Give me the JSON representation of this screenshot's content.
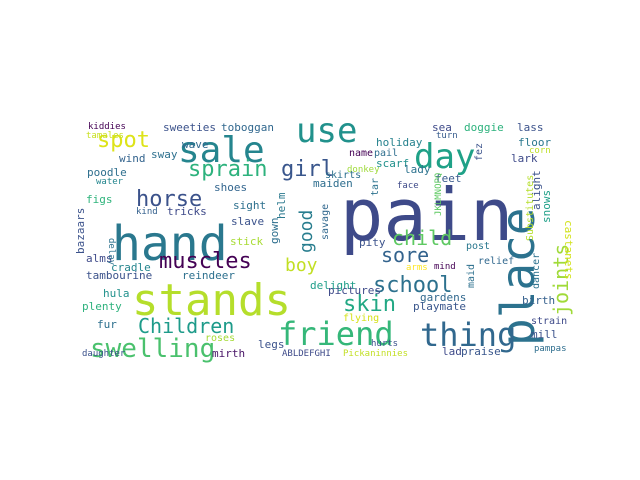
{
  "words": [
    {
      "text": "pain",
      "color": "#3e4a89"
    },
    {
      "text": "place",
      "color": "#2c728e"
    },
    {
      "text": "stands",
      "color": "#b5de2b"
    },
    {
      "text": "hand",
      "color": "#2a788e"
    },
    {
      "text": "friend",
      "color": "#35b779"
    },
    {
      "text": "thing",
      "color": "#31688e"
    },
    {
      "text": "sale",
      "color": "#25858e"
    },
    {
      "text": "use",
      "color": "#21918c"
    },
    {
      "text": "day",
      "color": "#1fa187"
    },
    {
      "text": "swelling",
      "color": "#4ac16d"
    },
    {
      "text": "Children",
      "color": "#1e9b8a"
    },
    {
      "text": "spot",
      "color": "#dde318"
    },
    {
      "text": "sprain",
      "color": "#2db27d"
    },
    {
      "text": "horse",
      "color": "#3b528b"
    },
    {
      "text": "muscles",
      "color": "#440154"
    },
    {
      "text": "girl",
      "color": "#39568c"
    },
    {
      "text": "school",
      "color": "#2d718e"
    },
    {
      "text": "skin",
      "color": "#22a884"
    },
    {
      "text": "joints",
      "color": "#a0da39"
    },
    {
      "text": "child",
      "color": "#5ec962"
    },
    {
      "text": "sore",
      "color": "#33638d"
    },
    {
      "text": "good",
      "color": "#287d8e"
    },
    {
      "text": "boy",
      "color": "#c2df23"
    },
    {
      "text": "sweeties",
      "color": "#3b528b"
    },
    {
      "text": "toboggan",
      "color": "#31688e"
    },
    {
      "text": "holiday",
      "color": "#26828e"
    },
    {
      "text": "sea",
      "color": "#3e4a89"
    },
    {
      "text": "doggie",
      "color": "#2db27d"
    },
    {
      "text": "lass",
      "color": "#3b528b"
    },
    {
      "text": "kiddies",
      "color": "#440154"
    },
    {
      "text": "scarf",
      "color": "#21918c"
    },
    {
      "text": "turn",
      "color": "#365c8d"
    },
    {
      "text": "floor",
      "color": "#2a788e"
    },
    {
      "text": "corn",
      "color": "#bddf26"
    },
    {
      "text": "tamales",
      "color": "#c8e020"
    },
    {
      "text": "wave",
      "color": "#31688e"
    },
    {
      "text": "sway",
      "color": "#2d708e"
    },
    {
      "text": "wind",
      "color": "#33638d"
    },
    {
      "text": "name",
      "color": "#440154"
    },
    {
      "text": "pail",
      "color": "#2e6e8e"
    },
    {
      "text": "donkey",
      "color": "#9fda3a"
    },
    {
      "text": "fez",
      "color": "#3b528b"
    },
    {
      "text": "lady",
      "color": "#2c728e"
    },
    {
      "text": "lark",
      "color": "#3e4a89"
    },
    {
      "text": "castanets",
      "color": "#d2e21b"
    },
    {
      "text": "poodle",
      "color": "#2e6f8e"
    },
    {
      "text": "water",
      "color": "#24868e"
    },
    {
      "text": "maiden",
      "color": "#2e6e8e"
    },
    {
      "text": "tar",
      "color": "#2c728e"
    },
    {
      "text": "snows",
      "color": "#1fa088"
    },
    {
      "text": "figs",
      "color": "#2fb47c"
    },
    {
      "text": "kind",
      "color": "#34608d"
    },
    {
      "text": "shoes",
      "color": "#32658e"
    },
    {
      "text": "face",
      "color": "#3e4a89"
    },
    {
      "text": "feet",
      "color": "#38598c"
    },
    {
      "text": "alight",
      "color": "#3b528b"
    },
    {
      "text": "tricks",
      "color": "#3e4a89"
    },
    {
      "text": "sight",
      "color": "#2d708e"
    },
    {
      "text": "helm",
      "color": "#2a788e"
    },
    {
      "text": "savage",
      "color": "#31688e"
    },
    {
      "text": "JKLMNOPQ",
      "color": "#5ec962"
    },
    {
      "text": "Substitutes",
      "color": "#b5de2b"
    },
    {
      "text": "delay",
      "color": "#2c728e"
    },
    {
      "text": "bazaars",
      "color": "#3b528b"
    },
    {
      "text": "slave",
      "color": "#3b528b"
    },
    {
      "text": "stick",
      "color": "#a8db34"
    },
    {
      "text": "gown",
      "color": "#2e6f8e"
    },
    {
      "text": "pity",
      "color": "#3b528b"
    },
    {
      "text": "post",
      "color": "#2a788e"
    },
    {
      "text": "alms",
      "color": "#3e4a89"
    },
    {
      "text": "cradle",
      "color": "#25858e"
    },
    {
      "text": "reindeer",
      "color": "#2d708e"
    },
    {
      "text": "arms",
      "color": "#fde725"
    },
    {
      "text": "mind",
      "color": "#440154"
    },
    {
      "text": "relief",
      "color": "#31688e"
    },
    {
      "text": "dancer",
      "color": "#2c728e"
    },
    {
      "text": "tambourine",
      "color": "#3b528b"
    },
    {
      "text": "hula",
      "color": "#21918c"
    },
    {
      "text": "delight",
      "color": "#1f9e89"
    },
    {
      "text": "plenty",
      "color": "#2db27d"
    },
    {
      "text": "pictures",
      "color": "#3e4a89"
    },
    {
      "text": "maid",
      "color": "#2d708e"
    },
    {
      "text": "birth",
      "color": "#35608d"
    },
    {
      "text": "gardens",
      "color": "#31688e"
    },
    {
      "text": "playmate",
      "color": "#39568c"
    },
    {
      "text": "flying",
      "color": "#d5e21a"
    },
    {
      "text": "fur",
      "color": "#2d708e"
    },
    {
      "text": "roses",
      "color": "#a5db36"
    },
    {
      "text": "strain",
      "color": "#3e4a89"
    },
    {
      "text": "mill",
      "color": "#3b528b"
    },
    {
      "text": "lad",
      "color": "#3e4a89"
    },
    {
      "text": "praise",
      "color": "#39568c"
    },
    {
      "text": "daughter",
      "color": "#3b528b"
    },
    {
      "text": "mirth",
      "color": "#481467"
    },
    {
      "text": "legs",
      "color": "#3b528b"
    },
    {
      "text": "ABLDEFGHI",
      "color": "#3e4a89"
    },
    {
      "text": "Pickaninnies",
      "color": "#c2df23"
    },
    {
      "text": "pampas",
      "color": "#2e6e8e"
    },
    {
      "text": "hurts",
      "color": "#3b528b"
    },
    {
      "text": "skirts",
      "color": "#2d708e"
    }
  ]
}
